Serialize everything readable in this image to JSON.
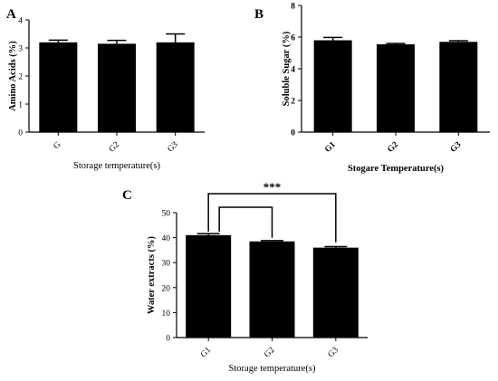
{
  "chart_data": [
    {
      "panel": "A",
      "type": "bar",
      "categories": [
        "G",
        "G2",
        "G3"
      ],
      "values": [
        3.2,
        3.15,
        3.2
      ],
      "errors": [
        0.08,
        0.12,
        0.3
      ],
      "xlabel": "Storage temperature(s)",
      "ylabel": "Amino Acids (%)",
      "ylim": [
        0,
        4
      ],
      "yticks": [
        "0",
        "1",
        "2",
        "3",
        "4"
      ],
      "grid": false,
      "colors": {
        "bar": "#000000"
      }
    },
    {
      "panel": "B",
      "type": "bar",
      "categories": [
        "G1",
        "G2",
        "G3"
      ],
      "values": [
        5.8,
        5.55,
        5.7
      ],
      "errors": [
        0.18,
        0.05,
        0.07
      ],
      "xlabel": "Stogare Temperature(s)",
      "ylabel": "Soluble Sugar (%)",
      "ylim": [
        0,
        8
      ],
      "yticks": [
        "0",
        "2",
        "4",
        "6",
        "8"
      ],
      "grid": false,
      "colors": {
        "bar": "#000000"
      }
    },
    {
      "panel": "C",
      "type": "bar",
      "categories": [
        "G1",
        "G2",
        "G3"
      ],
      "values": [
        41,
        38.5,
        36
      ],
      "errors": [
        0.6,
        0.3,
        0.4
      ],
      "xlabel": "Storage temperature(s)",
      "ylabel": "Water extracts (%)",
      "ylim": [
        0,
        50
      ],
      "yticks": [
        "0",
        "10",
        "20",
        "30",
        "40",
        "50"
      ],
      "grid": false,
      "significance": "***",
      "colors": {
        "bar": "#000000"
      }
    }
  ]
}
